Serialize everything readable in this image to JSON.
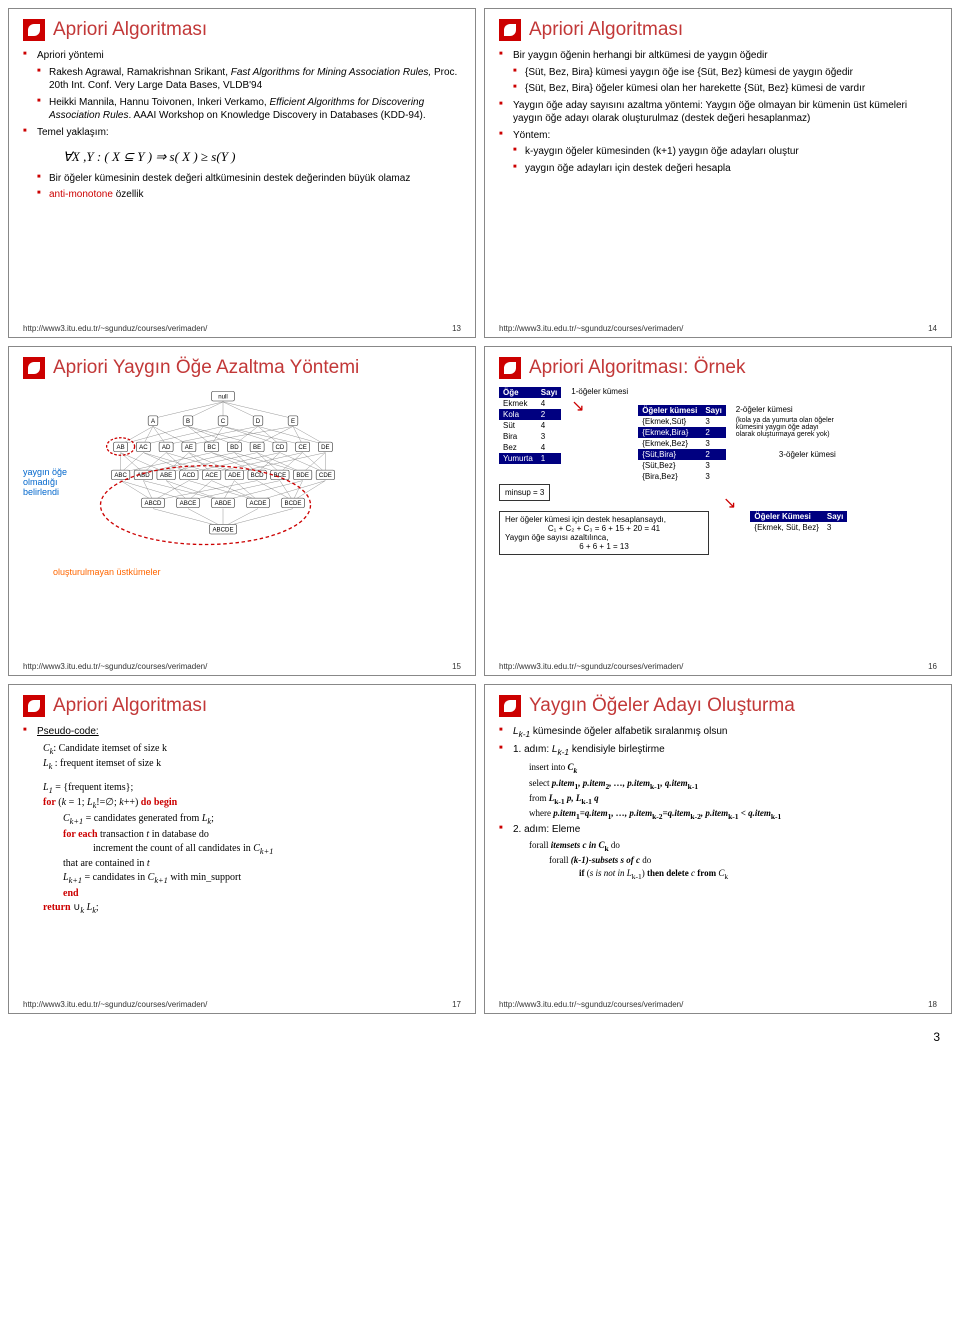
{
  "footer_url": "http://www3.itu.edu.tr/~sgunduz/courses/verimaden/",
  "page_number": "3",
  "slide13": {
    "title": "Apriori Algoritması",
    "b1": "Apriori yöntemi",
    "b1a": "Rakesh Agrawal, Ramakrishnan Srikant, ",
    "b1a_it": "Fast Algorithms for Mining Association Rules,",
    "b1a2": " Proc. 20th Int. Conf. Very Large Data Bases, VLDB'94",
    "b1b": "Heikki Mannila, Hannu Toivonen, Inkeri Verkamo, ",
    "b1b_it": "Efficient Algorithms for Discovering Association Rules",
    "b1b2": ". AAAI Workshop on Knowledge Discovery in Databases (KDD-94).",
    "b2": "Temel yaklaşım:",
    "formula": "∀X ,Y : ( X ⊆ Y ) ⇒ s( X ) ≥ s(Y )",
    "b3": "Bir öğeler kümesinin destek değeri altkümesinin destek değerinden büyük olamaz",
    "b4_pre": "anti-monotone",
    "b4_post": " özellik",
    "page": "13"
  },
  "slide14": {
    "title": "Apriori Algoritması",
    "b1": "Bir yaygın öğenin herhangi bir altkümesi de yaygın öğedir",
    "b1a": "{Süt, Bez, Bira} kümesi yaygın öğe ise {Süt, Bez} kümesi de yaygın öğedir",
    "b1b": "{Süt, Bez, Bira} öğeler kümesi olan her harekette {Süt, Bez} kümesi de vardır",
    "b2": "Yaygın öğe aday sayısını azaltma yöntemi: Yaygın öğe olmayan bir kümenin üst kümeleri yaygın öğe adayı olarak oluşturulmaz (destek değeri hesaplanmaz)",
    "b3": "Yöntem:",
    "b3a": "k-yaygın öğeler kümesinden (k+1) yaygın öğe adayları oluştur",
    "b3b": "yaygın öğe adayları için destek değeri hesapla",
    "page": "14"
  },
  "slide15": {
    "title": "Apriori Yaygın Öğe Azaltma Yöntemi",
    "note_left": "yaygın öğe olmadığı belirlendi",
    "note_bottom": "oluşturulmayan üstkümeler",
    "page": "15",
    "nodes_l0": [
      "null"
    ],
    "nodes_l1": [
      "A",
      "B",
      "C",
      "D",
      "E"
    ],
    "nodes_l2": [
      "AB",
      "AC",
      "AD",
      "AE",
      "BC",
      "BD",
      "BE",
      "CD",
      "CE",
      "DE"
    ],
    "nodes_l3": [
      "ABC",
      "ABD",
      "ABE",
      "ACD",
      "ACE",
      "ADE",
      "BCD",
      "BCE",
      "BDE",
      "CDE"
    ],
    "nodes_l4": [
      "ABCD",
      "ABCE",
      "ABDE",
      "ACDE",
      "BCDE"
    ],
    "nodes_l5": [
      "ABCDE"
    ],
    "oval_color": "#cc0000"
  },
  "slide16": {
    "title": "Apriori Algoritması: Örnek",
    "t1_head": [
      "Öğe",
      "Sayı"
    ],
    "t1_rows": [
      [
        "Ekmek",
        "4"
      ],
      [
        "Kola",
        "2"
      ],
      [
        "Süt",
        "4"
      ],
      [
        "Bira",
        "3"
      ],
      [
        "Bez",
        "4"
      ],
      [
        "Yumurta",
        "1"
      ]
    ],
    "minsup": "minsup = 3",
    "lbl1": "1-öğeler kümesi",
    "lbl2": "2-öğeler kümesi",
    "lbl2b": "(kola ya da yumurta olan öğeler kümesini yaygın öğe adayı olarak oluşturmaya gerek yok)",
    "lbl3": "3-öğeler kümesi",
    "t2_head": [
      "Öğeler kümesi",
      "Sayı"
    ],
    "t2_rows": [
      [
        "{Ekmek,Süt}",
        "3"
      ],
      [
        "{Ekmek,Bira}",
        "2"
      ],
      [
        "{Ekmek,Bez}",
        "3"
      ],
      [
        "{Süt,Bira}",
        "2"
      ],
      [
        "{Süt,Bez}",
        "3"
      ],
      [
        "{Bira,Bez}",
        "3"
      ]
    ],
    "box_txt1": "Her öğeler kümesi için destek hesaplansaydı,",
    "box_txt2": "C₁ + C₂ + C₃ = 6 + 15 + 20 = 41",
    "box_txt3": "Yaygın öğe sayısı azaltılınca,",
    "box_txt4": "6 + 6 + 1 = 13",
    "t3_head": [
      "Öğeler Kümesi",
      "Sayı"
    ],
    "t3_rows": [
      [
        "{Ekmek, Süt, Bez}",
        "3"
      ]
    ],
    "page": "16"
  },
  "slide17": {
    "title": "Apriori Algoritması",
    "b1": "Pseudo-code:",
    "l1_a": "C",
    "l1_b": ": Candidate itemset of size k",
    "l2_a": "L",
    "l2_b": " : frequent itemset of size k",
    "l3_a": "L",
    "l3_sub": "1",
    "l3_b": " = {frequent items};",
    "l4_a": "for",
    "l4_b": " (",
    "l4_c": "k",
    "l4_d": " = 1; ",
    "l4_e": "L",
    "l4_f": "!=∅; ",
    "l4_g": "k",
    "l4_h": "++) ",
    "l4_i": "do begin",
    "l5_a": "C",
    "l5_sub": "k+1",
    "l5_b": " = candidates generated from ",
    "l5_c": "L",
    "l5_d": ";",
    "l6_a": "for each",
    "l6_b": " transaction ",
    "l6_c": "t",
    "l6_d": " in database do",
    "l7": "increment the count of all candidates in ",
    "l7_c": "C",
    "l7_sub": "k+1",
    "l8": "that are contained in ",
    "l8_c": "t",
    "l9_a": "L",
    "l9_sub": "k+1",
    "l9_b": " = candidates in ",
    "l9_c": "C",
    "l9_sub2": "k+1",
    "l9_d": " with min_support",
    "l10": "end",
    "l11_a": "return",
    "l11_b": " ∪",
    "l11_c": "k",
    "l11_d": " L",
    "l11_e": ";",
    "page": "17"
  },
  "slide18": {
    "title": "Yaygın Öğeler Adayı Oluşturma",
    "b1_a": "L",
    "b1_sub": "k-1",
    "b1_b": " kümesinde öğeler alfabetik sıralanmış olsun",
    "b2_a": "1. adım: ",
    "b2_b": "L",
    "b2_sub": "k-1",
    "b2_c": " kendisiyle birleştirme",
    "l1": "insert into ",
    "l1_b": "C",
    "l1_sub": "k",
    "l2": "select ",
    "l2_b": "p.item",
    "l2_s1": "1",
    "l2_c": ", p.item",
    "l2_s2": "2",
    "l2_d": ", …, p.item",
    "l2_s3": "k-1",
    "l2_e": ", q.item",
    "l2_s4": "k-1",
    "l3": "from ",
    "l3_b": "L",
    "l3_s1": "k-1",
    "l3_c": " p, L",
    "l3_s2": "k-1",
    "l3_d": " q",
    "l4": "where ",
    "l4_b": "p.item",
    "l4_s1": "1",
    "l4_c": "=q.item",
    "l4_s2": "1",
    "l4_d": ", …, p.item",
    "l4_s3": "k-2",
    "l4_e": "=q.item",
    "l4_s4": "k-2",
    "l4_f": ", p.item",
    "l4_s5": "k-1",
    "l4_g": " < q.item",
    "l4_s6": "k-1",
    "b3": "2. adım: Eleme",
    "l5": "forall ",
    "l5_b": "itemsets c in C",
    "l5_s": "k",
    "l5_c": " do",
    "l6": "forall ",
    "l6_b": "(k-1)-subsets s of c",
    "l6_c": " do",
    "l7_a": "if",
    "l7_b": " (",
    "l7_c": "s is not in L",
    "l7_s": "k-1",
    "l7_d": ") ",
    "l7_e": "then delete",
    "l7_f": " c ",
    "l7_g": "from",
    "l7_h": " C",
    "l7_s2": "k",
    "page": "18"
  }
}
